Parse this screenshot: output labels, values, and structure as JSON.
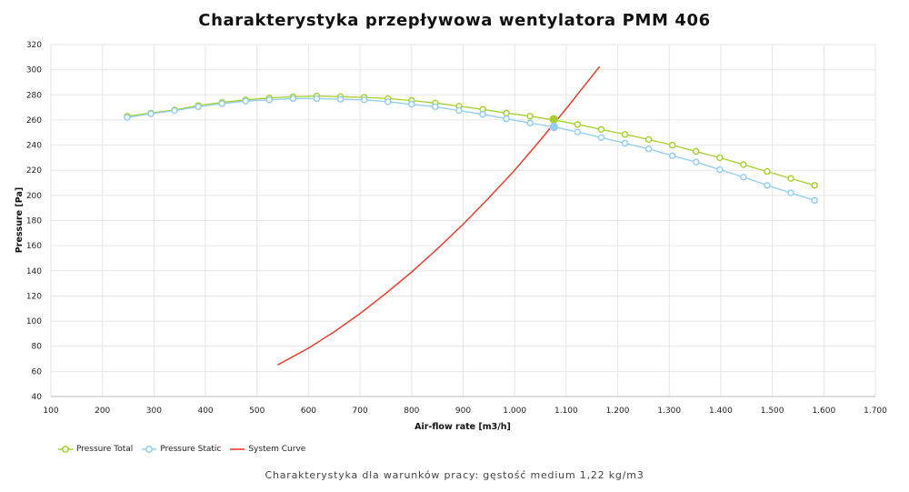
{
  "chart_data": {
    "type": "line",
    "title": "Charakterystyka przepływowa wentylatora PMM 406",
    "xlabel": "Air-flow rate [m3/h]",
    "ylabel": "Pressure [Pa]",
    "xlim": [
      100,
      1700
    ],
    "ylim": [
      40,
      320
    ],
    "x_ticks": [
      "100",
      "200",
      "300",
      "400",
      "500",
      "600",
      "700",
      "800",
      "900",
      "1.000",
      "1.100",
      "1.200",
      "1.300",
      "1.400",
      "1.500",
      "1.600",
      "1.700"
    ],
    "y_ticks": [
      "40",
      "60",
      "80",
      "100",
      "120",
      "140",
      "160",
      "180",
      "200",
      "220",
      "240",
      "260",
      "280",
      "300",
      "320"
    ],
    "grid": true,
    "legend_position": "bottom-left",
    "series": [
      {
        "name": "Pressure Total",
        "color": "#a6d12b",
        "marker": "hollow-circle",
        "x": [
          248,
          294,
          340,
          386,
          432,
          478,
          524,
          570,
          616,
          662,
          708,
          754,
          800,
          846,
          892,
          938,
          984,
          1030,
          1076,
          1122,
          1168,
          1214,
          1260,
          1306,
          1352,
          1398,
          1444,
          1490,
          1536,
          1582
        ],
        "y": [
          263,
          265.5,
          268,
          271.5,
          274,
          276,
          277.5,
          278.5,
          279,
          278.5,
          278,
          277,
          275.5,
          273.5,
          271,
          268.5,
          265.5,
          263,
          260,
          256.5,
          252.5,
          248.5,
          244.5,
          240,
          235,
          230,
          224.5,
          219,
          213.5,
          208
        ]
      },
      {
        "name": "Pressure Static",
        "color": "#8fcdf2",
        "marker": "hollow-circle",
        "x": [
          248,
          294,
          340,
          386,
          432,
          478,
          524,
          570,
          616,
          662,
          708,
          754,
          800,
          846,
          892,
          938,
          984,
          1030,
          1076,
          1122,
          1168,
          1214,
          1260,
          1306,
          1352,
          1398,
          1444,
          1490,
          1536,
          1582
        ],
        "y": [
          262,
          265,
          267.5,
          270.5,
          273,
          275,
          276,
          277,
          277,
          276.5,
          276,
          274.5,
          272.5,
          270.5,
          267.5,
          264.5,
          261,
          257.5,
          254.5,
          250.5,
          246,
          241.5,
          237,
          231.5,
          226.5,
          220.5,
          214.5,
          208,
          202,
          196
        ]
      },
      {
        "name": "System Curve",
        "color": "#ee3322",
        "marker": "none",
        "x": [
          540,
          600,
          650,
          700,
          750,
          800,
          850,
          900,
          950,
          1000,
          1050,
          1100,
          1165
        ],
        "y": [
          65,
          78.5,
          91.5,
          106,
          122,
          139,
          157.5,
          177,
          198,
          220,
          244,
          269,
          302.5
        ]
      }
    ],
    "operating_points": [
      {
        "series": "Pressure Total",
        "x": 1076,
        "y": 260.5,
        "color": "#a6d12b"
      },
      {
        "series": "Pressure Static",
        "x": 1076,
        "y": 254.5,
        "color": "#8fcdf2"
      }
    ],
    "footnote": "Charakterystyka dla warunków pracy: gęstość medium 1,22 kg/m3"
  }
}
